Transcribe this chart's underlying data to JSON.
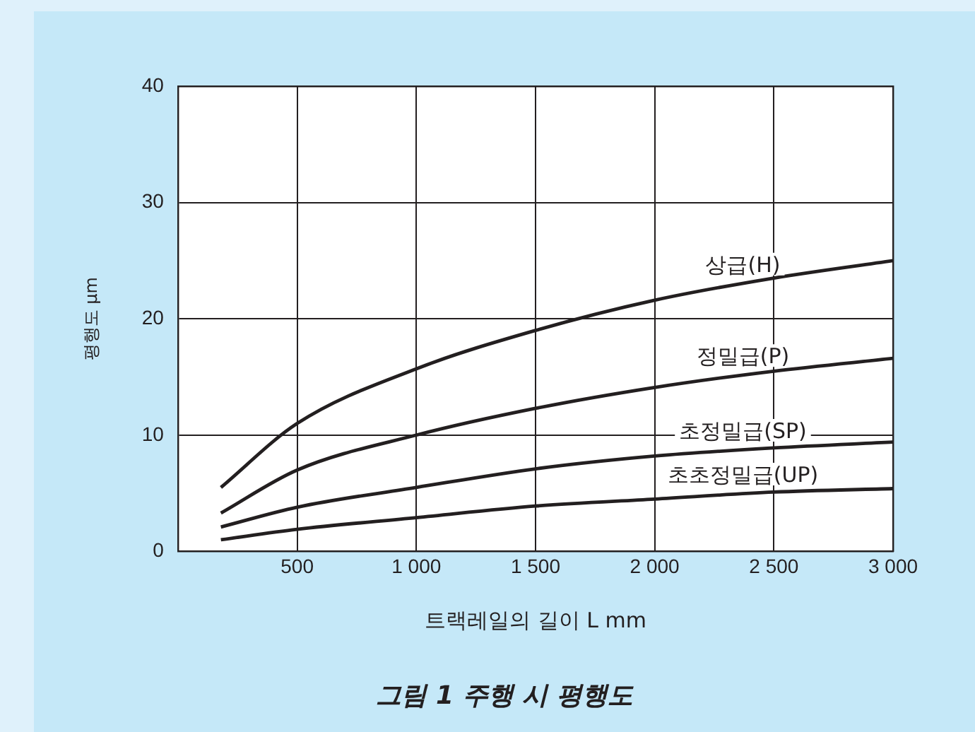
{
  "chart_data": {
    "type": "line",
    "title": "그림 1 주행 시 평행도",
    "xlabel": "트랙레일의 길이 L mm",
    "ylabel": "평행도 μm",
    "x": [
      180,
      500,
      1000,
      1500,
      2000,
      2500,
      3000
    ],
    "series": [
      {
        "name": "상급(H)",
        "color": "#231f20",
        "values": [
          5.5,
          11,
          15.7,
          19,
          21.6,
          23.5,
          25
        ]
      },
      {
        "name": "정밀급(P)",
        "color": "#231f20",
        "values": [
          3.3,
          7,
          10,
          12.3,
          14.1,
          15.5,
          16.6
        ]
      },
      {
        "name": "초정밀급(SP)",
        "color": "#231f20",
        "values": [
          2.1,
          3.8,
          5.5,
          7.1,
          8.2,
          8.9,
          9.4
        ]
      },
      {
        "name": "초초정밀급(UP)",
        "color": "#231f20",
        "values": [
          1,
          1.9,
          2.9,
          3.9,
          4.5,
          5.1,
          5.4
        ]
      }
    ],
    "xlim": [
      0,
      3000
    ],
    "xticks": [
      {
        "value": 0,
        "label": null
      },
      500,
      {
        "value": 1000,
        "label": "1 000"
      },
      {
        "value": 1500,
        "label": "1 500"
      },
      {
        "value": 2000,
        "label": "2 000"
      },
      {
        "value": 2500,
        "label": "2 500"
      },
      {
        "value": 3000,
        "label": "3 000"
      }
    ],
    "ylim": [
      0,
      40
    ],
    "yticks": [
      0,
      10,
      20,
      30,
      40
    ],
    "grid": true,
    "legend": false,
    "marker": "none",
    "line_style": "solid"
  }
}
